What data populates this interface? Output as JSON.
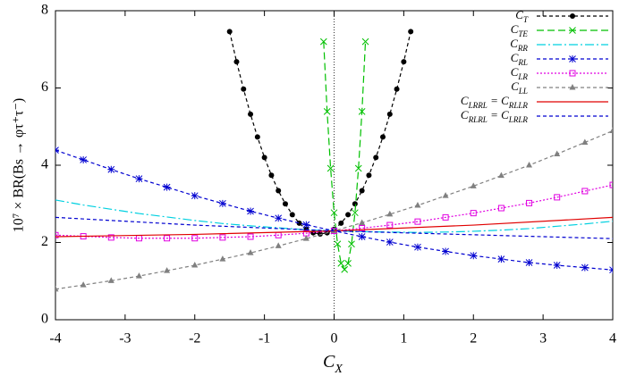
{
  "chart_data": {
    "type": "line",
    "xlabel": "CX",
    "ylabel": "10⁷ × BR(Bs → φτ⁺τ⁻)",
    "xlim": [
      -4,
      4
    ],
    "ylim": [
      0,
      8
    ],
    "xticks": [
      -4,
      -3,
      -2,
      -1,
      0,
      1,
      2,
      3,
      4
    ],
    "yticks": [
      0,
      2,
      4,
      6,
      8
    ],
    "series": [
      {
        "name": "CT",
        "color": "#000000",
        "marker": "circle",
        "dash": "4,3",
        "x": [
          -1.5,
          -1.4,
          -1.3,
          -1.2,
          -1.1,
          -1.0,
          -0.9,
          -0.8,
          -0.7,
          -0.6,
          -0.5,
          -0.4,
          -0.3,
          -0.2,
          -0.1,
          0.0,
          0.1,
          0.2,
          0.3,
          0.4,
          0.5,
          0.6,
          0.7,
          0.8,
          0.9,
          1.0,
          1.1
        ],
        "values": [
          7.46,
          6.68,
          5.97,
          5.32,
          4.73,
          4.2,
          3.74,
          3.34,
          3.0,
          2.72,
          2.5,
          2.34,
          2.25,
          2.22,
          2.25,
          2.34,
          2.5,
          2.72,
          3.0,
          3.34,
          3.74,
          4.2,
          4.73,
          5.32,
          5.97,
          6.68,
          7.46
        ]
      },
      {
        "name": "CTE",
        "color": "#00c000",
        "marker": "cross",
        "dash": "8,4",
        "x": [
          -0.15,
          -0.1,
          -0.05,
          0.0,
          0.05,
          0.1,
          0.15,
          0.2,
          0.25,
          0.3,
          0.35,
          0.4,
          0.45
        ],
        "values": [
          7.2,
          5.39,
          3.92,
          2.77,
          1.96,
          1.46,
          1.3,
          1.46,
          1.96,
          2.77,
          3.92,
          5.39,
          7.2
        ]
      },
      {
        "name": "CRR",
        "color": "#00d0e0",
        "marker": "none",
        "dash": "10,3,2,3",
        "x": [
          -4,
          -3.6,
          -3.2,
          -2.8,
          -2.4,
          -2,
          -1.6,
          -1.2,
          -0.8,
          -0.4,
          0,
          0.4,
          0.8,
          1.2,
          1.6,
          2,
          2.4,
          2.8,
          3.2,
          3.6,
          4
        ],
        "values": [
          3.1,
          2.97,
          2.86,
          2.75,
          2.66,
          2.57,
          2.49,
          2.43,
          2.38,
          2.33,
          2.3,
          2.28,
          2.27,
          2.26,
          2.27,
          2.29,
          2.32,
          2.36,
          2.42,
          2.48,
          2.55
        ]
      },
      {
        "name": "CRL",
        "color": "#0000d0",
        "marker": "star",
        "dash": "4,3",
        "x": [
          -4,
          -3.6,
          -3.2,
          -2.8,
          -2.4,
          -2,
          -1.6,
          -1.2,
          -0.8,
          -0.4,
          0,
          0.4,
          0.8,
          1.2,
          1.6,
          2,
          2.4,
          2.8,
          3.2,
          3.6,
          4
        ],
        "values": [
          4.39,
          4.14,
          3.89,
          3.65,
          3.43,
          3.21,
          3.01,
          2.81,
          2.63,
          2.46,
          2.3,
          2.15,
          2.01,
          1.88,
          1.77,
          1.66,
          1.57,
          1.48,
          1.41,
          1.35,
          1.29
        ]
      },
      {
        "name": "CLR",
        "color": "#e000e0",
        "marker": "square",
        "dash": "2,2",
        "x": [
          -4,
          -3.6,
          -3.2,
          -2.8,
          -2.4,
          -2,
          -1.6,
          -1.2,
          -0.8,
          -0.4,
          0,
          0.4,
          0.8,
          1.2,
          1.6,
          2,
          2.4,
          2.8,
          3.2,
          3.6,
          4
        ],
        "values": [
          2.19,
          2.16,
          2.13,
          2.11,
          2.11,
          2.11,
          2.13,
          2.15,
          2.19,
          2.24,
          2.3,
          2.37,
          2.45,
          2.54,
          2.65,
          2.76,
          2.89,
          3.02,
          3.17,
          3.33,
          3.49
        ]
      },
      {
        "name": "CLL",
        "color": "#808080",
        "marker": "triangle",
        "dash": "4,3",
        "x": [
          -4,
          -3.6,
          -3.2,
          -2.8,
          -2.4,
          -2,
          -1.6,
          -1.2,
          -0.8,
          -0.4,
          0,
          0.4,
          0.8,
          1.2,
          1.6,
          2,
          2.4,
          2.8,
          3.2,
          3.6,
          4
        ],
        "values": [
          0.79,
          0.9,
          1.01,
          1.13,
          1.27,
          1.41,
          1.57,
          1.73,
          1.91,
          2.1,
          2.3,
          2.51,
          2.73,
          2.96,
          3.21,
          3.46,
          3.73,
          4.0,
          4.29,
          4.59,
          4.89
        ]
      },
      {
        "name": "CLRRL = CRLLR",
        "color": "#e00000",
        "marker": "none",
        "dash": "none",
        "x": [
          -4,
          -2,
          0,
          2,
          4
        ],
        "values": [
          2.15,
          2.21,
          2.3,
          2.45,
          2.65
        ]
      },
      {
        "name": "CRLRL = CLRLR",
        "color": "#0000d0",
        "marker": "none",
        "dash": "4,3",
        "x": [
          -4,
          -2,
          0,
          2,
          4
        ],
        "values": [
          2.65,
          2.45,
          2.3,
          2.2,
          2.1
        ]
      }
    ]
  }
}
